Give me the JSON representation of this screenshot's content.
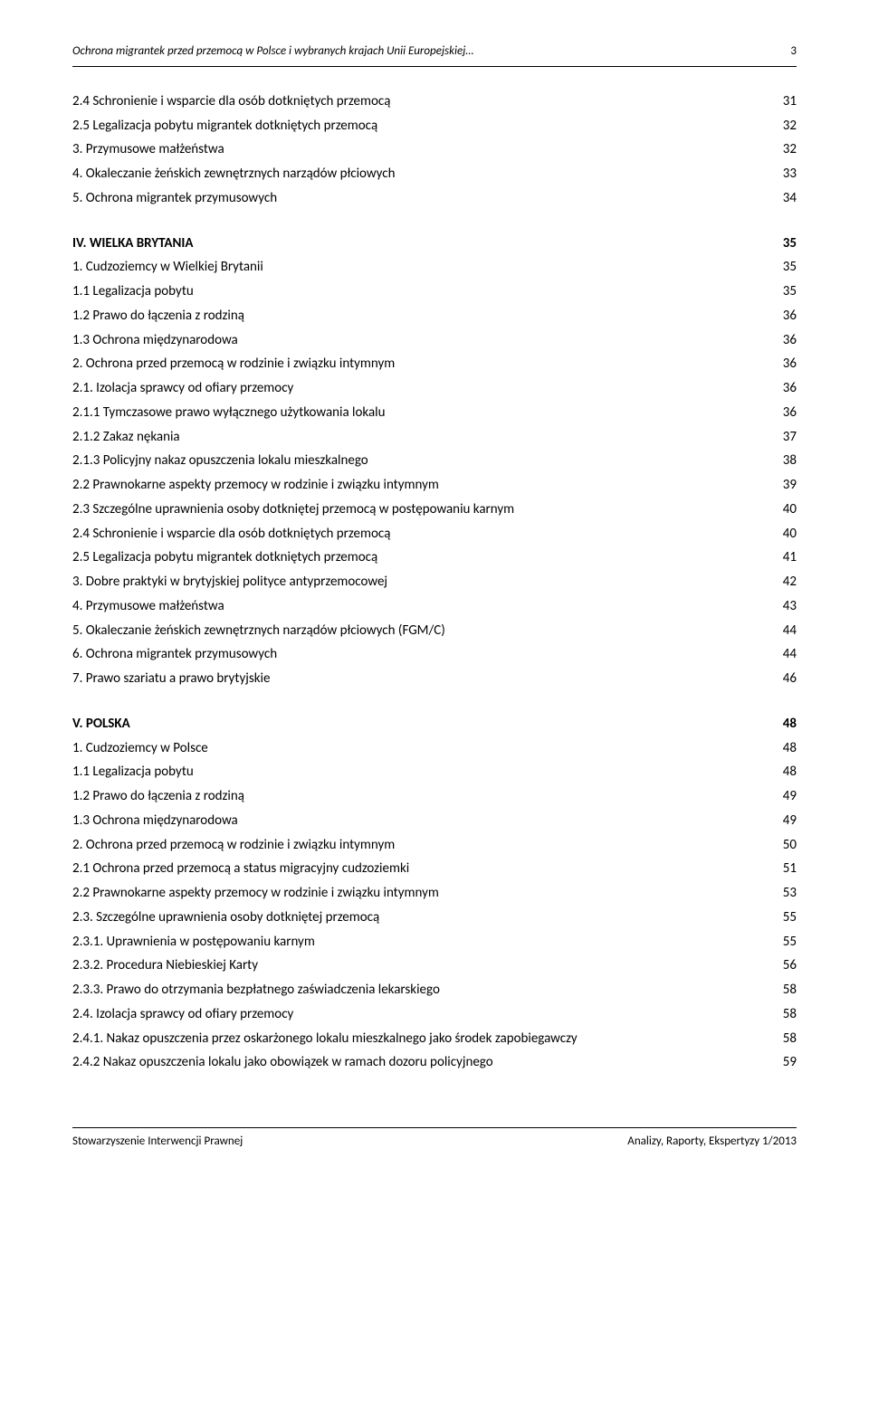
{
  "header": {
    "title": "Ochrona migrantek przed przemocą w Polsce i wybranych krajach Unii Europejskiej…",
    "page": "3"
  },
  "toc": [
    {
      "label": "2.4 Schronienie i wsparcie dla osób dotkniętych przemocą",
      "page": "31"
    },
    {
      "label": "2.5 Legalizacja pobytu migrantek dotkniętych przemocą",
      "page": "32"
    },
    {
      "label": "3. Przymusowe małżeństwa",
      "page": "32"
    },
    {
      "label": "4. Okaleczanie żeńskich zewnętrznych narządów płciowych",
      "page": "33"
    },
    {
      "label": "5. Ochrona migrantek przymusowych",
      "page": "34"
    },
    {
      "label": "IV. WIELKA BRYTANIA",
      "page": "35",
      "section": true
    },
    {
      "label": "1. Cudzoziemcy w Wielkiej Brytanii",
      "page": "35"
    },
    {
      "label": "1.1 Legalizacja pobytu",
      "page": "35"
    },
    {
      "label": "1.2 Prawo do łączenia z rodziną",
      "page": "36"
    },
    {
      "label": "1.3 Ochrona międzynarodowa",
      "page": "36"
    },
    {
      "label": "2. Ochrona przed przemocą w rodzinie i związku intymnym",
      "page": "36"
    },
    {
      "label": "2.1. Izolacja sprawcy od ofiary przemocy",
      "page": "36"
    },
    {
      "label": "2.1.1 Tymczasowe prawo wyłącznego użytkowania lokalu",
      "page": "36"
    },
    {
      "label": "2.1.2 Zakaz nękania",
      "page": "37"
    },
    {
      "label": "2.1.3 Policyjny nakaz opuszczenia lokalu mieszkalnego",
      "page": "38"
    },
    {
      "label": "2.2 Prawnokarne aspekty przemocy w rodzinie i związku intymnym",
      "page": "39"
    },
    {
      "label": "2.3 Szczególne uprawnienia osoby dotkniętej przemocą w postępowaniu karnym",
      "page": "40"
    },
    {
      "label": "2.4 Schronienie i wsparcie dla osób dotkniętych przemocą",
      "page": "40"
    },
    {
      "label": "2.5 Legalizacja pobytu migrantek dotkniętych przemocą",
      "page": "41"
    },
    {
      "label": "3. Dobre praktyki w brytyjskiej polityce antyprzemocowej",
      "page": "42"
    },
    {
      "label": "4. Przymusowe małżeństwa",
      "page": "43"
    },
    {
      "label": "5. Okaleczanie żeńskich zewnętrznych narządów płciowych (FGM/C)",
      "page": "44"
    },
    {
      "label": "6. Ochrona migrantek przymusowych",
      "page": "44"
    },
    {
      "label": "7. Prawo szariatu a prawo brytyjskie",
      "page": "46"
    },
    {
      "label": "V. POLSKA",
      "page": "48",
      "section": true
    },
    {
      "label": "1. Cudzoziemcy w Polsce",
      "page": "48"
    },
    {
      "label": "1.1 Legalizacja pobytu",
      "page": "48"
    },
    {
      "label": "1.2 Prawo do łączenia z rodziną",
      "page": "49"
    },
    {
      "label": "1.3 Ochrona międzynarodowa",
      "page": "49"
    },
    {
      "label": "2. Ochrona przed przemocą w rodzinie i związku intymnym",
      "page": "50"
    },
    {
      "label": "2.1 Ochrona przed przemocą a status migracyjny cudzoziemki",
      "page": "51"
    },
    {
      "label": "2.2 Prawnokarne aspekty przemocy w rodzinie i związku intymnym",
      "page": "53"
    },
    {
      "label": "2.3. Szczególne uprawnienia osoby dotkniętej przemocą",
      "page": "55"
    },
    {
      "label": "2.3.1. Uprawnienia w postępowaniu karnym",
      "page": "55"
    },
    {
      "label": "2.3.2. Procedura Niebieskiej Karty",
      "page": "56"
    },
    {
      "label": "2.3.3. Prawo do otrzymania bezpłatnego zaświadczenia lekarskiego",
      "page": "58"
    },
    {
      "label": "2.4. Izolacja sprawcy od ofiary przemocy",
      "page": "58"
    },
    {
      "label": "2.4.1. Nakaz opuszczenia przez oskarżonego lokalu mieszkalnego jako środek zapobiegawczy",
      "page": "58"
    },
    {
      "label": "2.4.2 Nakaz opuszczenia lokalu jako obowiązek w ramach dozoru policyjnego",
      "page": "59"
    }
  ],
  "footer": {
    "left": "Stowarzyszenie Interwencji Prawnej",
    "right": "Analizy, Raporty, Ekspertyzy 1/2013"
  }
}
